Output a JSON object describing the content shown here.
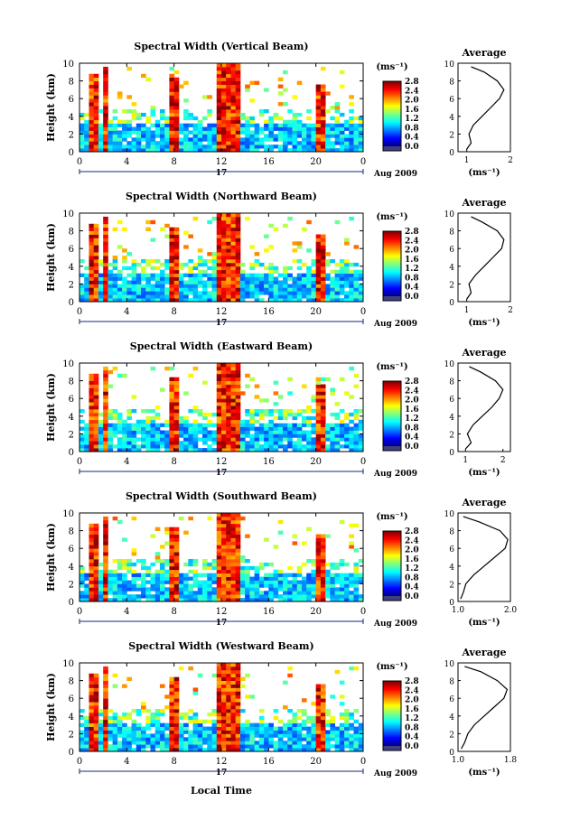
{
  "figure": {
    "xlabel": "Local Time",
    "date_label": "Aug 2009",
    "day_label": "17",
    "avg_title": "Average",
    "avg_xlabel": "(ms⁻¹)",
    "colorbar_unit": "(ms⁻¹)"
  },
  "chart_data": [
    {
      "type": "heatmap",
      "title": "Spectral Width (Vertical Beam)",
      "ylabel": "Height (km)",
      "x_ticks": [
        "0",
        "4",
        "8",
        "12",
        "16",
        "20",
        "0"
      ],
      "y_ticks": [
        "0",
        "2",
        "4",
        "6",
        "8",
        "10"
      ],
      "xlim": [
        0,
        24
      ],
      "ylim": [
        0,
        10
      ],
      "colorbar": {
        "ticks": [
          "0.0",
          "0.4",
          "0.8",
          "1.2",
          "1.6",
          "2.0",
          "2.4",
          "2.8"
        ],
        "range": [
          0,
          2.8
        ]
      },
      "average_profile": {
        "xlim": [
          0.8,
          2.0
        ],
        "x_ticks": [
          "1",
          "2"
        ],
        "heights": [
          0.3,
          1,
          2,
          3,
          4,
          5,
          6,
          7,
          8,
          9,
          9.6
        ],
        "values": [
          1.0,
          1.1,
          1.05,
          1.15,
          1.35,
          1.55,
          1.75,
          1.85,
          1.7,
          1.4,
          1.1
        ]
      }
    },
    {
      "type": "heatmap",
      "title": "Spectral Width (Northward Beam)",
      "ylabel": "Height (km)",
      "x_ticks": [
        "0",
        "4",
        "8",
        "12",
        "16",
        "20",
        "0"
      ],
      "y_ticks": [
        "0",
        "2",
        "4",
        "6",
        "8",
        "10"
      ],
      "xlim": [
        0,
        24
      ],
      "ylim": [
        0,
        10
      ],
      "colorbar": {
        "ticks": [
          "0.0",
          "0.4",
          "0.8",
          "1.2",
          "1.6",
          "2.0",
          "2.4",
          "2.8"
        ],
        "range": [
          0,
          2.8
        ]
      },
      "average_profile": {
        "xlim": [
          0.8,
          2.0
        ],
        "x_ticks": [
          "1",
          "2"
        ],
        "heights": [
          0.3,
          1,
          2,
          3,
          4,
          5,
          6,
          7,
          8,
          9,
          9.6
        ],
        "values": [
          1.0,
          1.1,
          1.05,
          1.2,
          1.4,
          1.6,
          1.8,
          1.85,
          1.7,
          1.35,
          1.1
        ]
      }
    },
    {
      "type": "heatmap",
      "title": "Spectral Width (Eastward Beam)",
      "ylabel": "Height (km)",
      "x_ticks": [
        "0",
        "4",
        "8",
        "12",
        "16",
        "20",
        "0"
      ],
      "y_ticks": [
        "0",
        "2",
        "4",
        "6",
        "8",
        "10"
      ],
      "xlim": [
        0,
        24
      ],
      "ylim": [
        0,
        10
      ],
      "colorbar": {
        "ticks": [
          "0.0",
          "0.4",
          "0.8",
          "1.2",
          "1.6",
          "2.0",
          "2.4",
          "2.8"
        ],
        "range": [
          0,
          2.8
        ]
      },
      "average_profile": {
        "xlim": [
          0.8,
          2.2
        ],
        "x_ticks": [
          "1",
          "2"
        ],
        "heights": [
          0.3,
          1,
          2,
          3,
          4,
          5,
          6,
          7,
          8,
          9,
          9.6
        ],
        "values": [
          1.0,
          1.15,
          1.05,
          1.2,
          1.45,
          1.7,
          1.9,
          2.0,
          1.8,
          1.4,
          1.1
        ]
      }
    },
    {
      "type": "heatmap",
      "title": "Spectral Width (Southward Beam)",
      "ylabel": "Height (km)",
      "x_ticks": [
        "0",
        "4",
        "8",
        "12",
        "16",
        "20",
        "0"
      ],
      "y_ticks": [
        "0",
        "2",
        "4",
        "6",
        "8",
        "10"
      ],
      "xlim": [
        0,
        24
      ],
      "ylim": [
        0,
        10
      ],
      "colorbar": {
        "ticks": [
          "0.0",
          "0.4",
          "0.8",
          "1.2",
          "1.6",
          "2.0",
          "2.4",
          "2.8"
        ],
        "range": [
          0,
          2.8
        ]
      },
      "average_profile": {
        "xlim": [
          1.0,
          2.0
        ],
        "x_ticks": [
          "1.0",
          "2.0"
        ],
        "heights": [
          0.3,
          1,
          2,
          3,
          4,
          5,
          6,
          7,
          8,
          9,
          9.6
        ],
        "values": [
          1.05,
          1.1,
          1.15,
          1.3,
          1.5,
          1.7,
          1.9,
          1.95,
          1.8,
          1.4,
          1.1
        ]
      }
    },
    {
      "type": "heatmap",
      "title": "Spectral Width (Westward Beam)",
      "ylabel": "Height (km)",
      "x_ticks": [
        "0",
        "4",
        "8",
        "12",
        "16",
        "20",
        "0"
      ],
      "y_ticks": [
        "0",
        "2",
        "4",
        "6",
        "8",
        "10"
      ],
      "xlim": [
        0,
        24
      ],
      "ylim": [
        0,
        10
      ],
      "colorbar": {
        "ticks": [
          "0.0",
          "0.4",
          "0.8",
          "1.2",
          "1.6",
          "2.0",
          "2.4",
          "2.8"
        ],
        "range": [
          0,
          2.8
        ]
      },
      "average_profile": {
        "xlim": [
          1.0,
          1.8
        ],
        "x_ticks": [
          "1.0",
          "1.8"
        ],
        "heights": [
          0.3,
          1,
          2,
          3,
          4,
          5,
          6,
          7,
          8,
          9,
          9.6
        ],
        "values": [
          1.05,
          1.1,
          1.15,
          1.25,
          1.4,
          1.55,
          1.7,
          1.75,
          1.6,
          1.35,
          1.1
        ]
      }
    }
  ]
}
